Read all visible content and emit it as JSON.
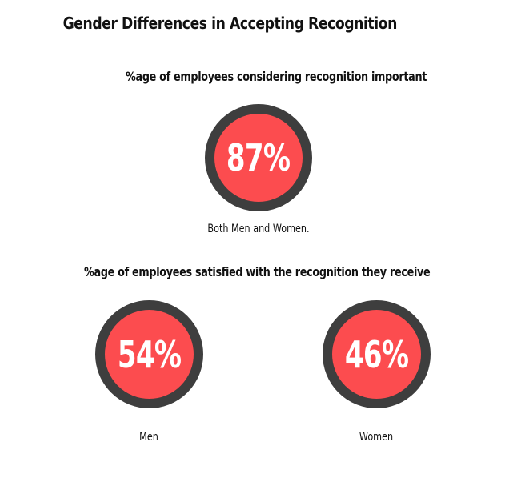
{
  "title": "Gender Differences in Accepting Recognition",
  "sections": {
    "important": {
      "heading": "%age of employees considering recognition important"
    },
    "satisfied": {
      "heading": "%age of employees satisfied with the recognition they receive"
    }
  },
  "colors": {
    "circle_fill": "#fc4c4f",
    "circle_ring": "#3e3e3e",
    "value_text": "#ffffff"
  },
  "chart_data": [
    {
      "type": "table",
      "title": "%age of employees considering recognition important",
      "categories": [
        "Both Men and Women."
      ],
      "values": [
        87
      ],
      "value_labels": [
        "87%"
      ]
    },
    {
      "type": "table",
      "title": "%age of employees satisfied with the recognition they receive",
      "categories": [
        "Men",
        "Women"
      ],
      "values": [
        54,
        46
      ],
      "value_labels": [
        "54%",
        "46%"
      ]
    }
  ]
}
